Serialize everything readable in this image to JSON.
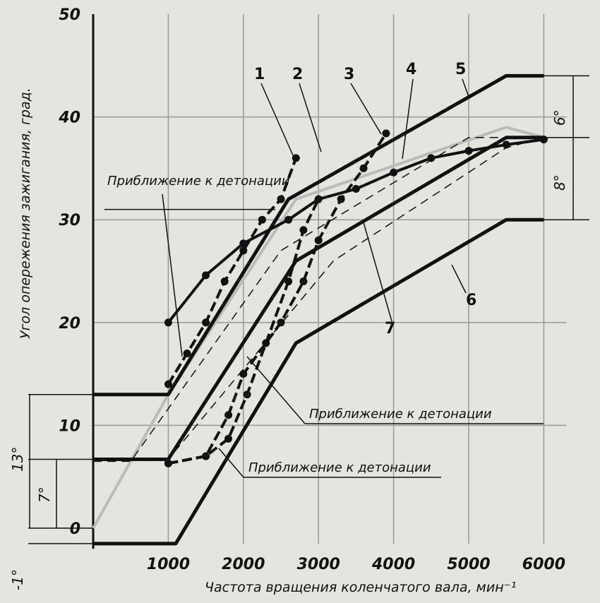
{
  "chart_data": {
    "type": "line",
    "xlabel": "Частота вращения коленчатого вала, мин⁻¹",
    "ylabel": "Угол опережения зажигания, град.",
    "xlim": [
      0,
      6300
    ],
    "ylim": [
      -1,
      50
    ],
    "x_ticks": [
      1000,
      2000,
      3000,
      4000,
      5000,
      6000
    ],
    "x_tick_labels": [
      "1000",
      "2000",
      "3000",
      "4000",
      "5000",
      "6000"
    ],
    "y_ticks": [
      0,
      10,
      20,
      30,
      40,
      50
    ],
    "y_tick_labels": [
      "0",
      "10",
      "20",
      "30",
      "40",
      "50"
    ],
    "grid": true,
    "series": [
      {
        "name": "1",
        "style": "dashed-markers",
        "x": [
          1000,
          1250,
          1500,
          1750,
          2000,
          2250,
          2500,
          2700
        ],
        "y": [
          14,
          17,
          20,
          24,
          27,
          30,
          32,
          36
        ]
      },
      {
        "name": "2",
        "style": "dashed-markers",
        "x": [
          1000,
          1500,
          1800,
          2050,
          2300,
          2600,
          2800,
          3000
        ],
        "y": [
          6.3,
          7,
          8.7,
          13,
          18,
          24,
          29,
          32
        ]
      },
      {
        "name": "3",
        "style": "dashed-markers",
        "x": [
          1000,
          1500,
          1800,
          2000,
          2500,
          2800,
          3000,
          3300,
          3600,
          3900
        ],
        "y": [
          6.3,
          7,
          11,
          15,
          20,
          24,
          28,
          32,
          35,
          38.4
        ]
      },
      {
        "name": "4",
        "style": "solid-markers",
        "x": [
          1000,
          1500,
          2000,
          2600,
          3000,
          3500,
          4000,
          4500,
          5000,
          5500,
          6000
        ],
        "y": [
          20,
          24.6,
          27.7,
          30,
          32,
          33,
          34.6,
          36,
          36.7,
          37.3,
          37.8
        ]
      },
      {
        "name": "5",
        "style": "solid",
        "x": [
          0,
          1000,
          2600,
          5500,
          6000
        ],
        "y": [
          13,
          13,
          32,
          44,
          44
        ]
      },
      {
        "name": "6",
        "style": "solid",
        "x": [
          0,
          1100,
          2700,
          5500,
          6000
        ],
        "y": [
          -1.5,
          -1.5,
          18,
          30,
          30
        ]
      },
      {
        "name": "7",
        "style": "solid",
        "x": [
          0,
          1000,
          2700,
          5500,
          6000
        ],
        "y": [
          6.7,
          6.7,
          26,
          38,
          38
        ]
      },
      {
        "name": "",
        "style": "dashed",
        "x": [
          0,
          1000,
          3200,
          5500,
          6000
        ],
        "y": [
          6.7,
          6.7,
          26,
          37,
          38
        ]
      },
      {
        "name": "",
        "style": "dashed",
        "x": [
          0,
          500,
          2500,
          5000,
          6000
        ],
        "y": [
          6.5,
          6.5,
          27,
          38,
          38
        ]
      }
    ],
    "bands_gray": [
      {
        "x": [
          0,
          1000,
          2700,
          5500,
          6000
        ],
        "y": [
          0,
          13,
          32,
          39,
          38
        ]
      }
    ],
    "annotations": [
      {
        "text": "Приближение к детонации"
      },
      {
        "text": "Приближение к детонации"
      },
      {
        "text": "Приближение к детонации"
      }
    ],
    "dimension_labels": [
      "13°",
      "7°",
      "-1°",
      "6°",
      "8°"
    ]
  }
}
